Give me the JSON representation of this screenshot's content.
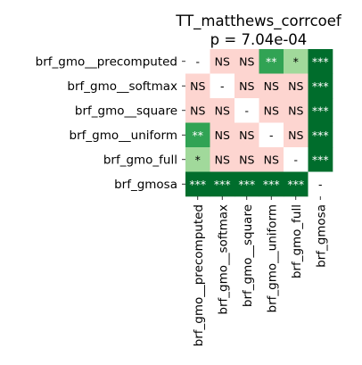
{
  "chart_data": {
    "type": "heatmap",
    "title": "TT_matthews_corrcoef",
    "subtitle": "p = 7.04e-04",
    "row_labels": [
      "brf_gmo__precomputed",
      "brf_gmo__softmax",
      "brf_gmo__square",
      "brf_gmo__uniform",
      "brf_gmo_full",
      "brf_gmosa"
    ],
    "col_labels": [
      "brf_gmo__precomputed",
      "brf_gmo__softmax",
      "brf_gmo__square",
      "brf_gmo__uniform",
      "brf_gmo_full",
      "brf_gmosa"
    ],
    "cells": [
      [
        "-",
        "NS",
        "NS",
        "**",
        "*",
        "***"
      ],
      [
        "NS",
        "-",
        "NS",
        "NS",
        "NS",
        "***"
      ],
      [
        "NS",
        "NS",
        "-",
        "NS",
        "NS",
        "***"
      ],
      [
        "**",
        "NS",
        "NS",
        "-",
        "NS",
        "***"
      ],
      [
        "*",
        "NS",
        "NS",
        "NS",
        "-",
        "***"
      ],
      [
        "***",
        "***",
        "***",
        "***",
        "***",
        "-"
      ]
    ],
    "legend": {
      "-": "#ffffff",
      "NS": "#fdd5d0",
      "*": "#a1d99b",
      "**": "#31a354",
      "***": "#006d2c"
    },
    "text_colors": {
      "-": "#000000",
      "NS": "#000000",
      "*": "#000000",
      "**": "#ffffff",
      "***": "#ffffff"
    }
  }
}
